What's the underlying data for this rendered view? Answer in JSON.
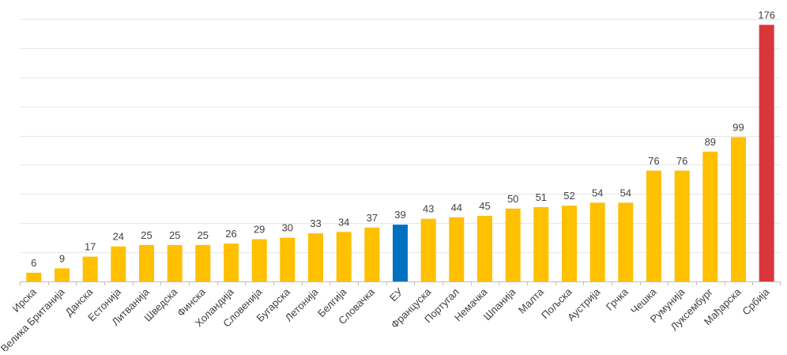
{
  "chart_data": {
    "type": "bar",
    "title": "",
    "xlabel": "",
    "ylabel": "",
    "ylim": [
      0,
      180
    ],
    "grid": true,
    "legend": "none",
    "categories": [
      "Ирска",
      "Велика Британија",
      "Данска",
      "Естонија",
      "Литванија",
      "Шведска",
      "Финска",
      "Холандија",
      "Словенија",
      "Бугарска",
      "Летонија",
      "Белгија",
      "Словачка",
      "ЕУ",
      "Француска",
      "Португал",
      "Немачка",
      "Шпанија",
      "Малта",
      "Пољска",
      "Аустрија",
      "Грчка",
      "Чешка",
      "Румунија",
      "Луксембург",
      "Мађарска",
      "Србија"
    ],
    "values": [
      6,
      9,
      17,
      24,
      25,
      25,
      25,
      26,
      29,
      30,
      33,
      34,
      37,
      39,
      43,
      44,
      45,
      50,
      51,
      52,
      54,
      54,
      76,
      76,
      89,
      99,
      176
    ],
    "bar_colors": [
      "#FFC000",
      "#FFC000",
      "#FFC000",
      "#FFC000",
      "#FFC000",
      "#FFC000",
      "#FFC000",
      "#FFC000",
      "#FFC000",
      "#FFC000",
      "#FFC000",
      "#FFC000",
      "#FFC000",
      "#0070C0",
      "#FFC000",
      "#FFC000",
      "#FFC000",
      "#FFC000",
      "#FFC000",
      "#FFC000",
      "#FFC000",
      "#FFC000",
      "#FFC000",
      "#FFC000",
      "#FFC000",
      "#FFC000",
      "#D9363A"
    ],
    "colors": {
      "default": "#FFC000",
      "eu": "#0070C0",
      "serbia": "#D9363A",
      "grid": "#E6E6E6",
      "axis": "#BFBFBF",
      "label_text": "#404040"
    }
  }
}
